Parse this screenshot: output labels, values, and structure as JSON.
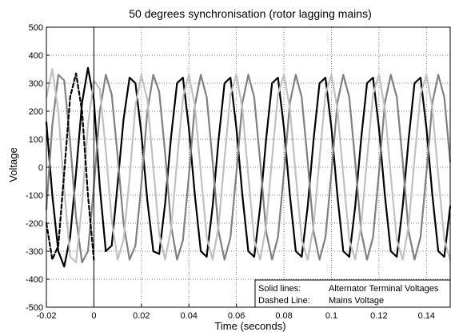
{
  "chart_data": {
    "type": "line",
    "title": "50 degrees synchronisation (rotor lagging mains)",
    "xlabel": "Time (seconds)",
    "ylabel": "Voltage",
    "xlim": [
      -0.02,
      0.15
    ],
    "ylim": [
      -500,
      500
    ],
    "xticks": [
      -0.02,
      0,
      0.02,
      0.04,
      0.06,
      0.08,
      0.1,
      0.12,
      0.14
    ],
    "xtick_labels": [
      "-0.02",
      "0",
      "0.02",
      "0.04",
      "0.06",
      "0.08",
      "0.1",
      "0.12",
      "0.14"
    ],
    "yticks": [
      -500,
      -400,
      -300,
      -200,
      -100,
      0,
      100,
      200,
      300,
      400,
      500
    ],
    "ytick_labels": [
      "-500",
      "-400",
      "-300",
      "-200",
      "-100",
      "0",
      "100",
      "200",
      "300",
      "400",
      "500"
    ],
    "grid": true,
    "grid_style": "dotted",
    "vertical_marker_x": 0,
    "legend": {
      "placement": "bottom-right",
      "rows": [
        {
          "key": "Solid lines:",
          "text": "Alternator Terminal Voltages"
        },
        {
          "key": "Dashed Line:",
          "text": "Mains Voltage"
        }
      ]
    },
    "series": [
      {
        "color": "#000000",
        "style": "solid",
        "x": [
          -0.02,
          -0.0175,
          -0.015,
          -0.0125,
          -0.01,
          -0.0075,
          -0.005,
          -0.0025,
          0,
          0.0025,
          0.005,
          0.0075,
          0.01,
          0.0125,
          0.015,
          0.0175,
          0.02,
          0.0225,
          0.025,
          0.0275,
          0.03,
          0.0325,
          0.035,
          0.0375,
          0.04,
          0.0425,
          0.045,
          0.0475,
          0.05,
          0.0525,
          0.055,
          0.0575,
          0.06,
          0.0625,
          0.065,
          0.0675,
          0.07,
          0.0725,
          0.075,
          0.0775,
          0.08,
          0.0825,
          0.085,
          0.0875,
          0.09,
          0.0925,
          0.095,
          0.0975,
          0.1,
          0.1025,
          0.105,
          0.1075,
          0.11,
          0.1125,
          0.115,
          0.1175,
          0.12,
          0.1225,
          0.125,
          0.1275,
          0.13,
          0.1325,
          0.135,
          0.1375,
          0.14,
          0.1425,
          0.145,
          0.1475,
          0.15
        ],
        "y": [
          160,
          -100,
          -300,
          -355,
          -250,
          -20,
          230,
          355,
          240,
          -70,
          -300,
          -280,
          -60,
          170,
          320,
          300,
          120,
          -120,
          -300,
          -310,
          -130,
          110,
          300,
          320,
          140,
          -100,
          -300,
          -320,
          -140,
          100,
          300,
          320,
          140,
          -100,
          -300,
          -320,
          -140,
          100,
          300,
          320,
          140,
          -100,
          -300,
          -320,
          -140,
          100,
          300,
          320,
          140,
          -100,
          -300,
          -320,
          -140,
          100,
          300,
          320,
          140,
          -100,
          -300,
          -320,
          -140,
          100,
          300,
          320,
          140,
          -100,
          -300,
          -320,
          -140
        ]
      },
      {
        "color": "#808080",
        "style": "solid",
        "x": [
          -0.02,
          -0.0175,
          -0.015,
          -0.0125,
          -0.01,
          -0.0075,
          -0.005,
          -0.0025,
          0,
          0.0025,
          0.005,
          0.0075,
          0.01,
          0.0125,
          0.015,
          0.0175,
          0.02,
          0.0225,
          0.025,
          0.0275,
          0.03,
          0.0325,
          0.035,
          0.0375,
          0.04,
          0.0425,
          0.045,
          0.0475,
          0.05,
          0.0525,
          0.055,
          0.0575,
          0.06,
          0.0625,
          0.065,
          0.0675,
          0.07,
          0.0725,
          0.075,
          0.0775,
          0.08,
          0.0825,
          0.085,
          0.0875,
          0.09,
          0.0925,
          0.095,
          0.0975,
          0.1,
          0.1025,
          0.105,
          0.1075,
          0.11,
          0.1125,
          0.115,
          0.1175,
          0.12,
          0.1225,
          0.125,
          0.1275,
          0.13,
          0.1325,
          0.135,
          0.1375,
          0.14,
          0.1425,
          0.145,
          0.1475,
          0.15
        ],
        "y": [
          -150,
          150,
          330,
          310,
          90,
          -180,
          -340,
          -300,
          -70,
          200,
          330,
          260,
          40,
          -200,
          -330,
          -280,
          -60,
          200,
          330,
          270,
          50,
          -210,
          -330,
          -260,
          -30,
          220,
          330,
          250,
          20,
          -230,
          -330,
          -250,
          -20,
          230,
          330,
          250,
          20,
          -230,
          -330,
          -250,
          -20,
          230,
          330,
          250,
          20,
          -230,
          -330,
          -250,
          -20,
          230,
          330,
          250,
          20,
          -230,
          -330,
          -250,
          -20,
          230,
          330,
          250,
          20,
          -230,
          -330,
          -250,
          -20,
          230,
          330,
          250,
          20
        ]
      },
      {
        "color": "#c0c0c0",
        "style": "solid",
        "x": [
          -0.02,
          -0.0175,
          -0.015,
          -0.0125,
          -0.01,
          -0.0075,
          -0.005,
          -0.0025,
          0,
          0.0025,
          0.005,
          0.0075,
          0.01,
          0.0125,
          0.015,
          0.0175,
          0.02,
          0.0225,
          0.025,
          0.0275,
          0.03,
          0.0325,
          0.035,
          0.0375,
          0.04,
          0.0425,
          0.045,
          0.0475,
          0.05,
          0.0525,
          0.055,
          0.0575,
          0.06,
          0.0625,
          0.065,
          0.0675,
          0.07,
          0.0725,
          0.075,
          0.0775,
          0.08,
          0.0825,
          0.085,
          0.0875,
          0.09,
          0.0925,
          0.095,
          0.0975,
          0.1,
          0.1025,
          0.105,
          0.1075,
          0.11,
          0.1125,
          0.115,
          0.1175,
          0.12,
          0.1225,
          0.125,
          0.1275,
          0.13,
          0.1325,
          0.135,
          0.1375,
          0.14,
          0.1425,
          0.145,
          0.1475,
          0.15
        ],
        "y": [
          250,
          350,
          200,
          -80,
          -320,
          -340,
          -130,
          150,
          310,
          280,
          60,
          -190,
          -330,
          -260,
          -40,
          220,
          330,
          240,
          0,
          -240,
          -330,
          -220,
          20,
          250,
          330,
          220,
          -20,
          -250,
          -330,
          -210,
          30,
          260,
          330,
          210,
          -30,
          -260,
          -330,
          -210,
          30,
          260,
          330,
          210,
          -30,
          -260,
          -330,
          -210,
          30,
          260,
          330,
          210,
          -30,
          -260,
          -330,
          -210,
          30,
          260,
          330,
          210,
          -30,
          -260,
          -330,
          -210,
          30,
          260,
          330,
          210,
          -30,
          -260,
          -330
        ]
      },
      {
        "color": "#000000",
        "style": "dashed",
        "x": [
          -0.02,
          -0.0175,
          -0.015,
          -0.0125,
          -0.01,
          -0.0075,
          -0.005,
          -0.0025,
          0
        ],
        "y": [
          -200,
          -330,
          -280,
          -20,
          250,
          335,
          200,
          -100,
          -330
        ]
      }
    ]
  }
}
